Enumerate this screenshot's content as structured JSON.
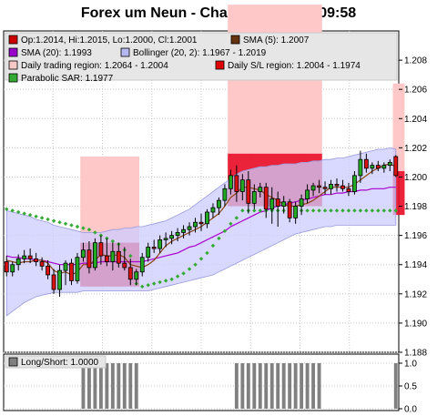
{
  "chart_data": [
    {
      "type": "candlestick",
      "title": "Forex um Neun - Chart 20.09.2017 09:58",
      "ylim": [
        1.188,
        1.21
      ],
      "yticks": [
        "1.188",
        "1.190",
        "1.192",
        "1.194",
        "1.196",
        "1.198",
        "1.200",
        "1.202",
        "1.204",
        "1.206",
        "1.208"
      ],
      "grid": true,
      "legend": [
        {
          "text": "Op:1.2014, Hi:1.2015, Lo:1.2000, Cl:1.2001",
          "color": "#cc0000"
        },
        {
          "text": "SMA (5): 1.2007",
          "color": "#663311"
        },
        {
          "text": "SMA (20): 1.1993",
          "color": "#9900cc"
        },
        {
          "text": "Bollinger (20, 2): 1.1967 - 1.2019",
          "color": "#b8b8f0"
        },
        {
          "text": "Daily trading region: 1.2064 - 1.2004",
          "color": "#f7c8c8"
        },
        {
          "text": "Daily S/L region: 1.2004 - 1.1974",
          "color": "#e00000"
        },
        {
          "text": "Parabolic SAR: 1.1977",
          "color": "#33aa33"
        }
      ],
      "colors": {
        "up": "#22aa22",
        "down": "#dd1111",
        "sma5": "#8b4513",
        "sma20": "#aa00cc",
        "bollinger": "#ccccff",
        "bollinger_edge": "#9999dd",
        "trading_region": "#ffc8c8",
        "sl_region": "#e8102a",
        "sar": "#33aa33"
      },
      "candles": [
        [
          1.1942,
          1.1946,
          1.1932,
          1.1935
        ],
        [
          1.1935,
          1.1942,
          1.1932,
          1.194
        ],
        [
          1.194,
          1.1947,
          1.1936,
          1.1944
        ],
        [
          1.1944,
          1.195,
          1.1941,
          1.1946
        ],
        [
          1.1946,
          1.1951,
          1.1941,
          1.1944
        ],
        [
          1.1944,
          1.1948,
          1.1939,
          1.1942
        ],
        [
          1.1942,
          1.1945,
          1.1936,
          1.1939
        ],
        [
          1.1939,
          1.1943,
          1.193,
          1.1933
        ],
        [
          1.1933,
          1.1937,
          1.192,
          1.1923
        ],
        [
          1.1923,
          1.194,
          1.1918,
          1.1936
        ],
        [
          1.1936,
          1.1943,
          1.1926,
          1.1941
        ],
        [
          1.1941,
          1.1944,
          1.1926,
          1.1929
        ],
        [
          1.1929,
          1.1948,
          1.1927,
          1.1945
        ],
        [
          1.1945,
          1.1955,
          1.1942,
          1.195
        ],
        [
          1.195,
          1.1956,
          1.1934,
          1.1938
        ],
        [
          1.1938,
          1.1958,
          1.1936,
          1.1955
        ],
        [
          1.1955,
          1.196,
          1.194,
          1.1946
        ],
        [
          1.1946,
          1.1958,
          1.1939,
          1.1942
        ],
        [
          1.1942,
          1.1955,
          1.1936,
          1.1949
        ],
        [
          1.1949,
          1.1955,
          1.1938,
          1.1941
        ],
        [
          1.1941,
          1.1952,
          1.1936,
          1.1938
        ],
        [
          1.1938,
          1.1944,
          1.1926,
          1.193
        ],
        [
          1.193,
          1.1937,
          1.1926,
          1.1935
        ],
        [
          1.1935,
          1.1948,
          1.1932,
          1.1945
        ],
        [
          1.1945,
          1.1955,
          1.1942,
          1.1952
        ],
        [
          1.1952,
          1.1957,
          1.1948,
          1.1951
        ],
        [
          1.1951,
          1.196,
          1.1948,
          1.1957
        ],
        [
          1.1957,
          1.1962,
          1.1952,
          1.1958
        ],
        [
          1.1958,
          1.1963,
          1.1954,
          1.196
        ],
        [
          1.196,
          1.1965,
          1.1956,
          1.1962
        ],
        [
          1.1962,
          1.1967,
          1.1958,
          1.1964
        ],
        [
          1.1964,
          1.1969,
          1.196,
          1.1966
        ],
        [
          1.1966,
          1.1972,
          1.1962,
          1.1969
        ],
        [
          1.1969,
          1.1975,
          1.1963,
          1.1968
        ],
        [
          1.1968,
          1.1978,
          1.1965,
          1.1976
        ],
        [
          1.1976,
          1.1982,
          1.1972,
          1.1979
        ],
        [
          1.1979,
          1.1986,
          1.1974,
          1.1984
        ],
        [
          1.1984,
          1.1995,
          1.198,
          1.1992
        ],
        [
          1.1992,
          1.2005,
          1.1988,
          1.2001
        ],
        [
          1.2001,
          1.2008,
          1.1983,
          1.199
        ],
        [
          1.199,
          1.2002,
          1.1984,
          1.1998
        ],
        [
          1.1998,
          1.2004,
          1.1975,
          1.1982
        ],
        [
          1.1982,
          1.1995,
          1.1978,
          1.199
        ],
        [
          1.199,
          1.1996,
          1.1986,
          1.1993
        ],
        [
          1.1993,
          1.1996,
          1.1972,
          1.1978
        ],
        [
          1.1978,
          1.1993,
          1.1968,
          1.1985
        ],
        [
          1.1985,
          1.199,
          1.1966,
          1.198
        ],
        [
          1.198,
          1.1987,
          1.1975,
          1.1983
        ],
        [
          1.1983,
          1.1985,
          1.1969,
          1.1972
        ],
        [
          1.1972,
          1.1983,
          1.1968,
          1.198
        ],
        [
          1.198,
          1.1988,
          1.1974,
          1.1985
        ],
        [
          1.1985,
          1.1995,
          1.1982,
          1.1991
        ],
        [
          1.1991,
          1.1996,
          1.1987,
          1.1994
        ],
        [
          1.1994,
          1.1998,
          1.1989,
          1.1993
        ],
        [
          1.1993,
          1.1997,
          1.1988,
          1.1992
        ],
        [
          1.1992,
          1.1998,
          1.1988,
          1.1995
        ],
        [
          1.1995,
          1.1999,
          1.199,
          1.1994
        ],
        [
          1.1994,
          1.1998,
          1.199,
          1.1992
        ],
        [
          1.1992,
          1.1996,
          1.1987,
          1.199
        ],
        [
          1.199,
          1.2004,
          1.1988,
          1.2001
        ],
        [
          1.2001,
          1.2018,
          1.1996,
          1.2012
        ],
        [
          1.2012,
          1.2016,
          1.2003,
          1.2006
        ],
        [
          1.2006,
          1.201,
          1.2002,
          1.2008
        ],
        [
          1.2008,
          1.2011,
          1.2004,
          1.2006
        ],
        [
          1.2006,
          1.201,
          1.2003,
          1.2008
        ],
        [
          1.2008,
          1.2012,
          1.2004,
          1.201
        ],
        [
          1.2014,
          1.2015,
          1.2,
          1.2001
        ]
      ],
      "sma5": [
        1.1943,
        1.1942,
        1.1941,
        1.1942,
        1.1942,
        1.1943,
        1.1943,
        1.1941,
        1.1936,
        1.1934,
        1.1935,
        1.1933,
        1.1935,
        1.194,
        1.194,
        1.1943,
        1.1947,
        1.1946,
        1.1946,
        1.1947,
        1.1945,
        1.194,
        1.1939,
        1.1938,
        1.194,
        1.1943,
        1.1948,
        1.1953,
        1.1956,
        1.1958,
        1.196,
        1.1962,
        1.1964,
        1.1966,
        1.1969,
        1.1972,
        1.1975,
        1.198,
        1.1986,
        1.1989,
        1.1993,
        1.1993,
        1.1992,
        1.1991,
        1.1988,
        1.1986,
        1.1984,
        1.1981,
        1.198,
        1.198,
        1.1981,
        1.1982,
        1.1984,
        1.1987,
        1.199,
        1.1993,
        1.1993,
        1.1993,
        1.1993,
        1.1995,
        1.1998,
        1.2001,
        1.2004,
        1.2006,
        1.2008,
        1.2009,
        1.2007
      ],
      "sma20": [
        1.1946,
        1.1945,
        1.1945,
        1.1944,
        1.1944,
        1.1943,
        1.1943,
        1.1942,
        1.1941,
        1.194,
        1.194,
        1.194,
        1.194,
        1.1941,
        1.1941,
        1.1941,
        1.1942,
        1.1942,
        1.1942,
        1.1942,
        1.1942,
        1.1942,
        1.1942,
        1.1942,
        1.1943,
        1.1944,
        1.1945,
        1.1946,
        1.1947,
        1.1948,
        1.195,
        1.1952,
        1.1953,
        1.1955,
        1.1957,
        1.1959,
        1.1961,
        1.1963,
        1.1966,
        1.1968,
        1.197,
        1.1972,
        1.1974,
        1.1976,
        1.1977,
        1.1979,
        1.198,
        1.1981,
        1.1982,
        1.1983,
        1.1984,
        1.1985,
        1.1986,
        1.1987,
        1.1988,
        1.1988,
        1.1989,
        1.1989,
        1.199,
        1.199,
        1.1991,
        1.1991,
        1.1992,
        1.1992,
        1.1992,
        1.1993,
        1.1993
      ],
      "boll_upper": [
        1.1977,
        1.1976,
        1.1975,
        1.1974,
        1.1973,
        1.1971,
        1.197,
        1.1969,
        1.1967,
        1.1966,
        1.1965,
        1.1964,
        1.1963,
        1.1962,
        1.1962,
        1.1962,
        1.1962,
        1.1963,
        1.1964,
        1.1964,
        1.1965,
        1.1965,
        1.1966,
        1.1966,
        1.1967,
        1.1968,
        1.1969,
        1.197,
        1.1972,
        1.1974,
        1.1976,
        1.1978,
        1.1981,
        1.1984,
        1.1987,
        1.199,
        1.1993,
        1.1996,
        1.1999,
        1.2002,
        1.2004,
        1.2005,
        1.2006,
        1.2007,
        1.2007,
        1.2008,
        1.2008,
        1.2009,
        1.2009,
        1.2009,
        1.201,
        1.201,
        1.2011,
        1.2011,
        1.2012,
        1.2012,
        1.2013,
        1.2013,
        1.2014,
        1.2015,
        1.2016,
        1.2017,
        1.2018,
        1.2019,
        1.2019,
        1.202,
        1.2019
      ],
      "boll_lower": [
        1.1905,
        1.1908,
        1.1911,
        1.1914,
        1.1916,
        1.1918,
        1.1919,
        1.192,
        1.1921,
        1.1921,
        1.1921,
        1.1921,
        1.1921,
        1.1922,
        1.1922,
        1.1922,
        1.1922,
        1.1922,
        1.1922,
        1.1922,
        1.1922,
        1.1922,
        1.1922,
        1.1922,
        1.1922,
        1.1923,
        1.1924,
        1.1925,
        1.1926,
        1.1927,
        1.1928,
        1.1929,
        1.193,
        1.1931,
        1.1932,
        1.1933,
        1.1935,
        1.1937,
        1.1939,
        1.1941,
        1.1943,
        1.1945,
        1.1947,
        1.1949,
        1.1951,
        1.1953,
        1.1955,
        1.1957,
        1.1959,
        1.1961,
        1.1962,
        1.1963,
        1.1964,
        1.1965,
        1.1966,
        1.1966,
        1.1967,
        1.1967,
        1.1967,
        1.1967,
        1.1967,
        1.1967,
        1.1967,
        1.1967,
        1.1967,
        1.1967,
        1.1967
      ],
      "sar": [
        1.1978,
        1.1977,
        1.1976,
        1.1975,
        1.1974,
        1.1973,
        1.1972,
        1.1971,
        1.197,
        1.1969,
        1.1968,
        1.1967,
        1.1966,
        1.1965,
        1.1964,
        1.1962,
        1.196,
        1.1958,
        1.1956,
        1.1954,
        1.195,
        1.1946,
        1.1927,
        1.1925,
        1.1926,
        1.1927,
        1.1928,
        1.1929,
        1.193,
        1.1932,
        1.1934,
        1.1937,
        1.194,
        1.1944,
        1.1948,
        1.1953,
        1.1958,
        1.1963,
        1.1968,
        1.1972,
        1.1977,
        1.1977,
        1.1977,
        1.1977,
        1.1977,
        1.1977,
        1.1977,
        1.1977,
        1.1977,
        1.1977,
        1.1977,
        1.1977,
        1.1977,
        1.1977,
        1.1977,
        1.1977,
        1.1977,
        1.1977,
        1.1977,
        1.1977,
        1.1977,
        1.1977,
        1.1977,
        1.1977,
        1.1977,
        1.1977,
        1.1977
      ],
      "regions": [
        {
          "name": "Daily trading region",
          "start": 13,
          "end": 22,
          "top": 1.2014,
          "bottom": 1.1925
        },
        {
          "name": "Daily S/L region",
          "start": 13,
          "end": 22,
          "top": 1.1955,
          "bottom": 1.1925
        },
        {
          "name": "Daily trading region",
          "start": 38,
          "end": 53,
          "top": 1.2118,
          "bottom": 1.2016
        },
        {
          "name": "Daily S/L region",
          "start": 38,
          "end": 53,
          "top": 1.2016,
          "bottom": 1.198
        },
        {
          "name": "Daily trading region",
          "start": 66,
          "end": 67,
          "top": 1.2064,
          "bottom": 1.2004
        },
        {
          "name": "Daily S/L region",
          "start": 66,
          "end": 67,
          "top": 1.2004,
          "bottom": 1.1974
        }
      ]
    },
    {
      "type": "bar",
      "legend": [
        {
          "text": "Long/Short: 1.0000",
          "color": "#808080"
        }
      ],
      "ylim": [
        0.0,
        1.0
      ],
      "yticks": [
        "1.0",
        "0.5",
        "0.0"
      ],
      "values": [
        0,
        0,
        0,
        0,
        0,
        0,
        0,
        0,
        0,
        0,
        0,
        0,
        0,
        1,
        1,
        1,
        1,
        1,
        1,
        1,
        1,
        1,
        1,
        0,
        0,
        0,
        0,
        0,
        0,
        0,
        0,
        0,
        0,
        0,
        0,
        0,
        0,
        0,
        0,
        1,
        1,
        1,
        1,
        1,
        1,
        1,
        1,
        1,
        1,
        1,
        1,
        1,
        1,
        1,
        0,
        0,
        0,
        0,
        0,
        0,
        0,
        0,
        0,
        0,
        0,
        0,
        1
      ],
      "color": "#808080"
    }
  ]
}
